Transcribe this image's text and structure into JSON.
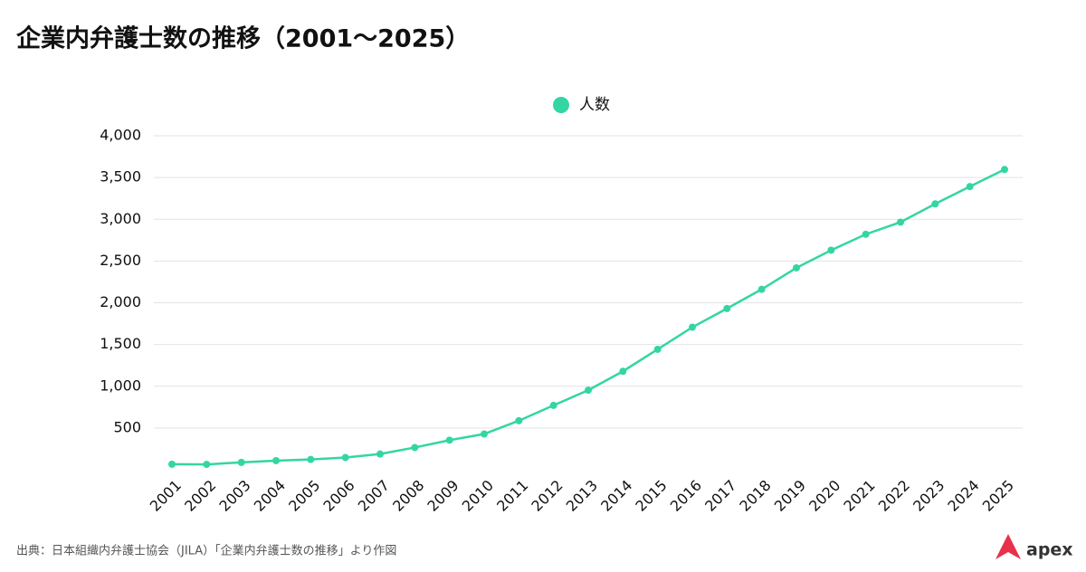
{
  "chart_data": {
    "type": "line",
    "title": "企業内弁護士数の推移（2001〜2025）",
    "categories": [
      "2001",
      "2002",
      "2003",
      "2004",
      "2005",
      "2006",
      "2007",
      "2008",
      "2009",
      "2010",
      "2011",
      "2012",
      "2013",
      "2014",
      "2015",
      "2016",
      "2017",
      "2018",
      "2019",
      "2020",
      "2021",
      "2022",
      "2023",
      "2024",
      "2025"
    ],
    "series": [
      {
        "name": "人数",
        "color": "#33d6a3",
        "values": [
          66,
          64,
          88,
          109,
          123,
          146,
          188,
          266,
          354,
          428,
          587,
          771,
          953,
          1179,
          1442,
          1707,
          1931,
          2161,
          2418,
          2629,
          2820,
          2965,
          3184,
          3391,
          3596
        ]
      }
    ],
    "ylim": [
      0,
      4000
    ],
    "yticks": [
      500,
      {
        "value": 1000,
        "label": "1,000"
      },
      {
        "value": 1500,
        "label": "1,500"
      },
      {
        "value": 2000,
        "label": "2,000"
      },
      {
        "value": 2500,
        "label": "2,500"
      },
      {
        "value": 3000,
        "label": "3,000"
      },
      {
        "value": 3500,
        "label": "3,500"
      },
      {
        "value": 4000,
        "label": "4,000"
      }
    ],
    "grid": true,
    "legend": "top",
    "source": "出典：日本組織内弁護士協会（JILA）「企業内弁護士数の推移」より作図",
    "logo": "apex"
  }
}
